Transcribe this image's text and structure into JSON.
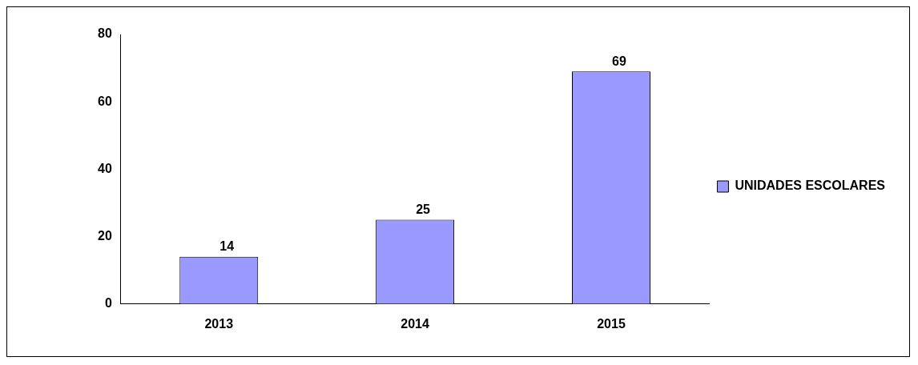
{
  "chart_data": {
    "type": "bar",
    "categories": [
      "2013",
      "2014",
      "2015"
    ],
    "series": [
      {
        "name": "UNIDADES ESCOLARES",
        "color": "#9999ff",
        "values": [
          14,
          25,
          69
        ]
      }
    ],
    "ylim": [
      0,
      80
    ],
    "yticks": [
      0,
      20,
      40,
      60,
      80
    ],
    "grid": false,
    "legend": "right",
    "data_labels": true
  }
}
